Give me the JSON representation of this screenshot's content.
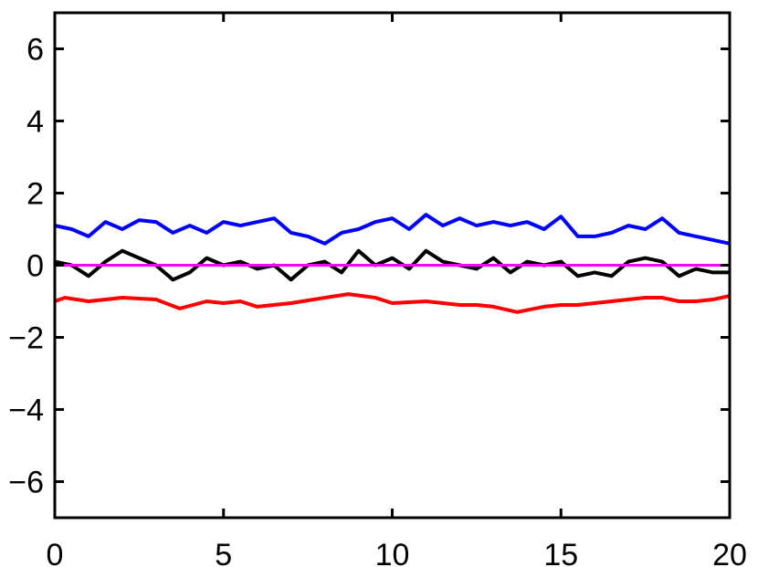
{
  "chart_data": {
    "type": "line",
    "title": "",
    "xlabel": "",
    "ylabel": "",
    "xlim": [
      0,
      20
    ],
    "ylim": [
      -7,
      7
    ],
    "grid": false,
    "x_ticks": [
      0,
      5,
      10,
      15,
      20
    ],
    "x_tick_labels": [
      "0",
      "5",
      "10",
      "15",
      "20"
    ],
    "y_ticks": [
      -6,
      -4,
      -2,
      0,
      2,
      4,
      6
    ],
    "y_tick_labels": [
      "−6",
      "−4",
      "−2",
      "0",
      "2",
      "4",
      "6"
    ],
    "series": [
      {
        "color": "#0000ff",
        "x": [
          0,
          0.5,
          1,
          1.5,
          2,
          2.5,
          3,
          3.5,
          4,
          4.5,
          5,
          5.5,
          6,
          6.5,
          7,
          7.5,
          8,
          8.5,
          9,
          9.5,
          10,
          10.5,
          11,
          11.5,
          12,
          12.5,
          13,
          13.5,
          14,
          14.5,
          15,
          15.5,
          16,
          16.5,
          17,
          17.5,
          18,
          18.5,
          19,
          19.5,
          20
        ],
        "y": [
          1.1,
          1.0,
          0.8,
          1.2,
          1.0,
          1.25,
          1.2,
          0.9,
          1.1,
          0.9,
          1.2,
          1.1,
          1.2,
          1.3,
          0.9,
          0.8,
          0.6,
          0.9,
          1.0,
          1.2,
          1.3,
          1.0,
          1.4,
          1.1,
          1.3,
          1.1,
          1.2,
          1.1,
          1.2,
          1.0,
          1.35,
          0.8,
          0.8,
          0.9,
          1.1,
          1.0,
          1.3,
          0.9,
          0.8,
          0.7,
          0.6
        ]
      },
      {
        "color": "#000000",
        "x": [
          0,
          0.5,
          1,
          1.5,
          2,
          2.5,
          3,
          3.5,
          4,
          4.5,
          5,
          5.5,
          6,
          6.5,
          7,
          7.5,
          8,
          8.5,
          9,
          9.5,
          10,
          10.5,
          11,
          11.5,
          12,
          12.5,
          13,
          13.5,
          14,
          14.5,
          15,
          15.5,
          16,
          16.5,
          17,
          17.5,
          18,
          18.5,
          19,
          19.5,
          20
        ],
        "y": [
          0.1,
          0.0,
          -0.3,
          0.1,
          0.4,
          0.2,
          0.0,
          -0.4,
          -0.2,
          0.2,
          0.0,
          0.1,
          -0.1,
          0.0,
          -0.4,
          0.0,
          0.1,
          -0.2,
          0.4,
          0.0,
          0.2,
          -0.1,
          0.4,
          0.1,
          0.0,
          -0.1,
          0.2,
          -0.2,
          0.1,
          0.0,
          0.1,
          -0.3,
          -0.2,
          -0.3,
          0.1,
          0.2,
          0.1,
          -0.3,
          -0.1,
          -0.2,
          -0.2
        ]
      },
      {
        "color": "#ff00ff",
        "x": [
          0,
          20
        ],
        "y": [
          0,
          0
        ]
      },
      {
        "color": "#ff0000",
        "x": [
          0,
          0.3,
          1,
          2,
          3,
          3.7,
          4.5,
          5,
          5.5,
          6,
          7,
          8,
          8.7,
          9.5,
          10,
          11,
          12,
          12.5,
          13,
          13.7,
          14.5,
          15,
          15.5,
          16,
          17,
          17.5,
          18,
          18.5,
          19,
          19.5,
          20
        ],
        "y": [
          -1.0,
          -0.9,
          -1.0,
          -0.9,
          -0.95,
          -1.2,
          -1.0,
          -1.05,
          -1.0,
          -1.15,
          -1.05,
          -0.9,
          -0.8,
          -0.9,
          -1.05,
          -1.0,
          -1.1,
          -1.1,
          -1.15,
          -1.3,
          -1.15,
          -1.1,
          -1.1,
          -1.05,
          -0.95,
          -0.9,
          -0.9,
          -1.0,
          -1.0,
          -0.95,
          -0.85
        ]
      }
    ]
  }
}
